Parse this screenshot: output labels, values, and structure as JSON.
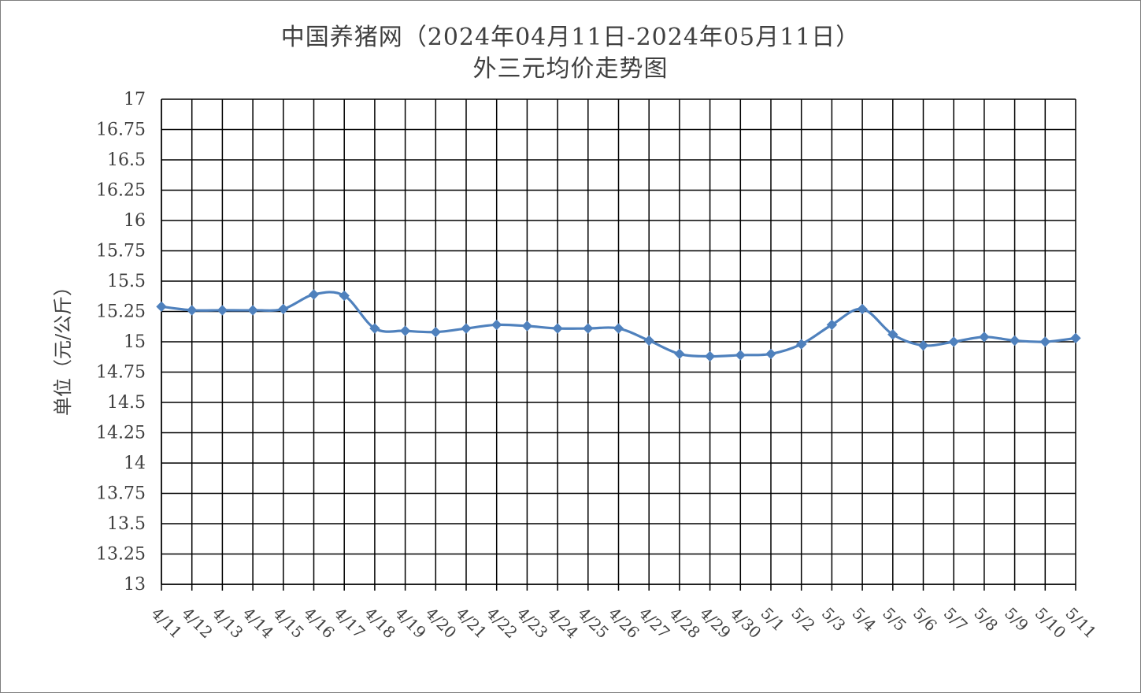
{
  "chart_data": {
    "type": "line",
    "title": "中国养猪网（2024年04月11日-2024年05月11日）",
    "subtitle": "外三元均价走势图",
    "xlabel": "",
    "ylabel": "单位（元/公斤）",
    "ylim": [
      13,
      17
    ],
    "yticks": [
      "13",
      "13.25",
      "13.5",
      "13.75",
      "14",
      "14.25",
      "14.5",
      "14.75",
      "15",
      "15.25",
      "15.5",
      "15.75",
      "16",
      "16.25",
      "16.5",
      "16.75",
      "17"
    ],
    "grid": true,
    "legend": "none",
    "categories": [
      "4/11",
      "4/12",
      "4/13",
      "4/14",
      "4/15",
      "4/16",
      "4/17",
      "4/18",
      "4/19",
      "4/20",
      "4/21",
      "4/22",
      "4/23",
      "4/24",
      "4/25",
      "4/26",
      "4/27",
      "4/28",
      "4/29",
      "4/30",
      "5/1",
      "5/2",
      "5/3",
      "5/4",
      "5/5",
      "5/6",
      "5/7",
      "5/8",
      "5/9",
      "5/10",
      "5/11"
    ],
    "series": [
      {
        "values": [
          15.29,
          15.26,
          15.26,
          15.26,
          15.27,
          15.39,
          15.38,
          15.11,
          15.09,
          15.08,
          15.11,
          15.14,
          15.13,
          15.11,
          15.11,
          15.11,
          15.01,
          14.9,
          14.88,
          14.89,
          14.9,
          14.98,
          15.14,
          15.27,
          15.06,
          14.97,
          15.0,
          15.04,
          15.01,
          15.0,
          15.03
        ],
        "color": "#4f81bd"
      }
    ]
  }
}
